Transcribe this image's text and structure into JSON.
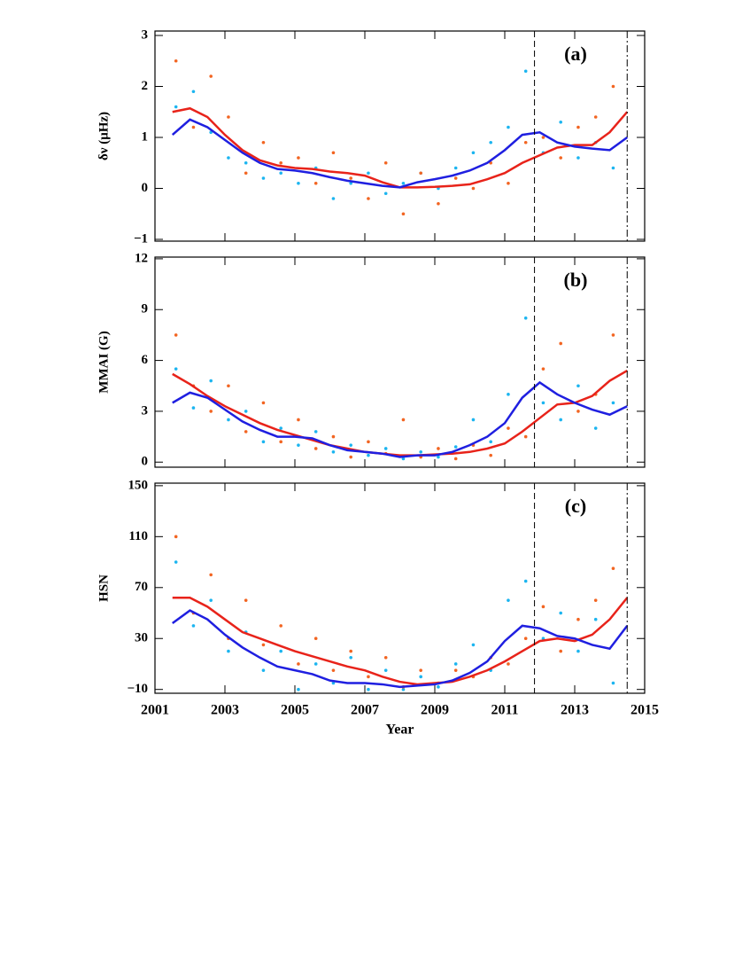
{
  "chart_data": [
    {
      "type": "line",
      "panel_label": "(a)",
      "ylabel": "δν (μHz)",
      "xlim": [
        2001,
        2015
      ],
      "xticks": [
        2001,
        2003,
        2005,
        2007,
        2009,
        2011,
        2013,
        2015
      ],
      "x_tick_labels": false,
      "ylim": [
        -1.035,
        3.087
      ],
      "yticks": [
        {
          "value": -1,
          "label": "−1"
        },
        0,
        1,
        2,
        3
      ],
      "vlines": [
        {
          "value": 2011.85,
          "style": "dashed"
        },
        {
          "value": 2014.5,
          "style": "dashdot"
        }
      ],
      "series": [
        {
          "kind": "scatter",
          "color": "#1cb5f0",
          "x": [
            2001.6,
            2002.1,
            2002.6,
            2003.1,
            2003.6,
            2004.1,
            2004.6,
            2005.1,
            2005.6,
            2006.1,
            2006.6,
            2007.1,
            2007.6,
            2008.1,
            2008.6,
            2009.1,
            2009.6,
            2010.1,
            2010.6,
            2011.1,
            2011.6,
            2012.1,
            2012.6,
            2013.1,
            2013.6,
            2014.1
          ],
          "values": [
            1.6,
            1.9,
            1.1,
            0.6,
            0.5,
            0.2,
            0.3,
            0.1,
            0.4,
            -0.2,
            0.1,
            0.3,
            -0.1,
            0.1,
            0.3,
            0.0,
            0.4,
            0.7,
            0.9,
            1.2,
            2.3,
            0.7,
            1.3,
            0.6,
            0.9,
            0.4
          ]
        },
        {
          "kind": "scatter",
          "color": "#f26522",
          "x": [
            2001.6,
            2002.1,
            2002.6,
            2003.1,
            2003.6,
            2004.1,
            2004.6,
            2005.1,
            2005.6,
            2006.1,
            2006.6,
            2007.1,
            2007.6,
            2008.1,
            2008.6,
            2009.1,
            2009.6,
            2010.1,
            2010.6,
            2011.1,
            2011.6,
            2012.1,
            2012.6,
            2013.1,
            2013.6,
            2014.1
          ],
          "values": [
            2.5,
            1.2,
            2.2,
            1.4,
            0.3,
            0.9,
            0.5,
            0.6,
            0.1,
            0.7,
            0.2,
            -0.2,
            0.5,
            -0.5,
            0.3,
            -0.3,
            0.2,
            0.0,
            0.5,
            0.1,
            0.9,
            1.0,
            0.6,
            1.2,
            1.4,
            2.0
          ]
        },
        {
          "kind": "line",
          "color": "#e8231a",
          "x": [
            2001.5,
            2002,
            2002.5,
            2003,
            2003.5,
            2004,
            2004.5,
            2005,
            2005.5,
            2006,
            2006.5,
            2007,
            2007.5,
            2008,
            2008.5,
            2009,
            2009.5,
            2010,
            2010.5,
            2011,
            2011.5,
            2012,
            2012.5,
            2013,
            2013.5,
            2014,
            2014.5
          ],
          "values": [
            1.5,
            1.57,
            1.4,
            1.05,
            0.75,
            0.55,
            0.45,
            0.4,
            0.38,
            0.33,
            0.3,
            0.25,
            0.12,
            0.02,
            0.02,
            0.03,
            0.05,
            0.08,
            0.18,
            0.3,
            0.5,
            0.65,
            0.8,
            0.85,
            0.85,
            1.1,
            1.5
          ]
        },
        {
          "kind": "line",
          "color": "#1f1fe0",
          "x": [
            2001.5,
            2002,
            2002.5,
            2003,
            2003.5,
            2004,
            2004.5,
            2005,
            2005.5,
            2006,
            2006.5,
            2007,
            2007.5,
            2008,
            2008.5,
            2009,
            2009.5,
            2010,
            2010.5,
            2011,
            2011.5,
            2012,
            2012.5,
            2013,
            2013.5,
            2014,
            2014.5
          ],
          "values": [
            1.05,
            1.35,
            1.2,
            0.95,
            0.7,
            0.5,
            0.38,
            0.35,
            0.3,
            0.22,
            0.15,
            0.1,
            0.05,
            0.02,
            0.12,
            0.18,
            0.25,
            0.35,
            0.5,
            0.75,
            1.05,
            1.1,
            0.9,
            0.82,
            0.78,
            0.75,
            1.0
          ]
        }
      ]
    },
    {
      "type": "line",
      "panel_label": "(b)",
      "ylabel": "MMAI (G)",
      "xlim": [
        2001,
        2015
      ],
      "xticks": [
        2001,
        2003,
        2005,
        2007,
        2009,
        2011,
        2013,
        2015
      ],
      "x_tick_labels": false,
      "ylim": [
        -0.3,
        12.1
      ],
      "yticks": [
        0,
        3,
        6,
        9,
        12
      ],
      "vlines": [
        {
          "value": 2011.85,
          "style": "dashed"
        },
        {
          "value": 2014.5,
          "style": "dashdot"
        }
      ],
      "series": [
        {
          "kind": "scatter",
          "color": "#1cb5f0",
          "x": [
            2001.6,
            2002.1,
            2002.6,
            2003.1,
            2003.6,
            2004.1,
            2004.6,
            2005.1,
            2005.6,
            2006.1,
            2006.6,
            2007.1,
            2007.6,
            2008.1,
            2008.6,
            2009.1,
            2009.6,
            2010.1,
            2010.6,
            2011.1,
            2011.6,
            2012.1,
            2012.6,
            2013.1,
            2013.6,
            2014.1
          ],
          "values": [
            5.5,
            3.2,
            4.8,
            2.5,
            3.0,
            1.2,
            2.0,
            1.0,
            1.8,
            0.6,
            1.0,
            0.4,
            0.8,
            0.2,
            0.6,
            0.3,
            0.9,
            2.5,
            1.2,
            4.0,
            8.5,
            3.5,
            2.5,
            4.5,
            2.0,
            3.5
          ]
        },
        {
          "kind": "scatter",
          "color": "#f26522",
          "x": [
            2001.6,
            2002.1,
            2002.6,
            2003.1,
            2003.6,
            2004.1,
            2004.6,
            2005.1,
            2005.6,
            2006.1,
            2006.6,
            2007.1,
            2007.6,
            2008.1,
            2008.6,
            2009.1,
            2009.6,
            2010.1,
            2010.6,
            2011.1,
            2011.6,
            2012.1,
            2012.6,
            2013.1,
            2013.6,
            2014.1
          ],
          "values": [
            7.5,
            4.5,
            3.0,
            4.5,
            1.8,
            3.5,
            1.2,
            2.5,
            0.8,
            1.5,
            0.3,
            1.2,
            0.5,
            2.5,
            0.3,
            0.8,
            0.2,
            1.0,
            0.4,
            2.0,
            1.5,
            5.5,
            7.0,
            3.0,
            4.0,
            7.5
          ]
        },
        {
          "kind": "line",
          "color": "#e8231a",
          "x": [
            2001.5,
            2002,
            2002.5,
            2003,
            2003.5,
            2004,
            2004.5,
            2005,
            2005.5,
            2006,
            2006.5,
            2007,
            2007.5,
            2008,
            2008.5,
            2009,
            2009.5,
            2010,
            2010.5,
            2011,
            2011.5,
            2012,
            2012.5,
            2013,
            2013.5,
            2014,
            2014.5
          ],
          "values": [
            5.2,
            4.6,
            3.9,
            3.3,
            2.8,
            2.3,
            1.9,
            1.6,
            1.3,
            1.0,
            0.8,
            0.6,
            0.5,
            0.4,
            0.4,
            0.45,
            0.5,
            0.6,
            0.8,
            1.1,
            1.8,
            2.6,
            3.4,
            3.5,
            3.9,
            4.8,
            5.4
          ]
        },
        {
          "kind": "line",
          "color": "#1f1fe0",
          "x": [
            2001.5,
            2002,
            2002.5,
            2003,
            2003.5,
            2004,
            2004.5,
            2005,
            2005.5,
            2006,
            2006.5,
            2007,
            2007.5,
            2008,
            2008.5,
            2009,
            2009.5,
            2010,
            2010.5,
            2011,
            2011.5,
            2012,
            2012.5,
            2013,
            2013.5,
            2014,
            2014.5
          ],
          "values": [
            3.5,
            4.1,
            3.8,
            3.1,
            2.4,
            1.9,
            1.5,
            1.5,
            1.4,
            1.0,
            0.7,
            0.6,
            0.5,
            0.3,
            0.4,
            0.4,
            0.6,
            1.0,
            1.5,
            2.3,
            3.8,
            4.7,
            4.0,
            3.5,
            3.1,
            2.8,
            3.3
          ]
        }
      ]
    },
    {
      "type": "line",
      "panel_label": "(c)",
      "ylabel": "HSN",
      "xlabel": "Year",
      "xlim": [
        2001,
        2015
      ],
      "xticks": [
        2001,
        2003,
        2005,
        2007,
        2009,
        2011,
        2013,
        2015
      ],
      "x_tick_labels": true,
      "ylim": [
        -13,
        152
      ],
      "yticks": [
        {
          "value": -10,
          "label": "−10"
        },
        30,
        70,
        110,
        150
      ],
      "vlines": [
        {
          "value": 2011.85,
          "style": "dashed"
        },
        {
          "value": 2014.5,
          "style": "dashdot"
        }
      ],
      "series": [
        {
          "kind": "scatter",
          "color": "#1cb5f0",
          "x": [
            2001.6,
            2002.1,
            2002.6,
            2003.1,
            2003.6,
            2004.1,
            2004.6,
            2005.1,
            2005.6,
            2006.1,
            2006.6,
            2007.1,
            2007.6,
            2008.1,
            2008.6,
            2009.1,
            2009.6,
            2010.1,
            2010.6,
            2011.1,
            2011.6,
            2012.1,
            2012.6,
            2013.1,
            2013.6,
            2014.1
          ],
          "values": [
            90,
            40,
            60,
            20,
            35,
            5,
            20,
            -10,
            10,
            -5,
            15,
            -10,
            5,
            -10,
            0,
            -8,
            10,
            25,
            5,
            60,
            75,
            30,
            50,
            20,
            45,
            -5
          ]
        },
        {
          "kind": "scatter",
          "color": "#f26522",
          "x": [
            2001.6,
            2002.1,
            2002.6,
            2003.1,
            2003.6,
            2004.1,
            2004.6,
            2005.1,
            2005.6,
            2006.1,
            2006.6,
            2007.1,
            2007.6,
            2008.1,
            2008.6,
            2009.1,
            2009.6,
            2010.1,
            2010.6,
            2011.1,
            2011.6,
            2012.1,
            2012.6,
            2013.1,
            2013.6,
            2014.1
          ],
          "values": [
            110,
            50,
            80,
            30,
            60,
            25,
            40,
            10,
            30,
            5,
            20,
            0,
            15,
            -8,
            5,
            -5,
            5,
            0,
            15,
            10,
            30,
            55,
            20,
            45,
            60,
            85
          ]
        },
        {
          "kind": "line",
          "color": "#e8231a",
          "x": [
            2001.5,
            2002,
            2002.5,
            2003,
            2003.5,
            2004,
            2004.5,
            2005,
            2005.5,
            2006,
            2006.5,
            2007,
            2007.5,
            2008,
            2008.5,
            2009,
            2009.5,
            2010,
            2010.5,
            2011,
            2011.5,
            2012,
            2012.5,
            2013,
            2013.5,
            2014,
            2014.5
          ],
          "values": [
            62,
            62,
            55,
            45,
            35,
            30,
            25,
            20,
            16,
            12,
            8,
            5,
            0,
            -4,
            -6,
            -5,
            -4,
            0,
            5,
            12,
            20,
            28,
            30,
            28,
            33,
            45,
            62
          ]
        },
        {
          "kind": "line",
          "color": "#1f1fe0",
          "x": [
            2001.5,
            2002,
            2002.5,
            2003,
            2003.5,
            2004,
            2004.5,
            2005,
            2005.5,
            2006,
            2006.5,
            2007,
            2007.5,
            2008,
            2008.5,
            2009,
            2009.5,
            2010,
            2010.5,
            2011,
            2011.5,
            2012,
            2012.5,
            2013,
            2013.5,
            2014,
            2014.5
          ],
          "values": [
            42,
            52,
            45,
            33,
            23,
            15,
            8,
            5,
            2,
            -3,
            -5,
            -5,
            -6,
            -8,
            -7,
            -6,
            -3,
            3,
            12,
            28,
            40,
            38,
            32,
            30,
            25,
            22,
            40
          ]
        }
      ]
    }
  ]
}
